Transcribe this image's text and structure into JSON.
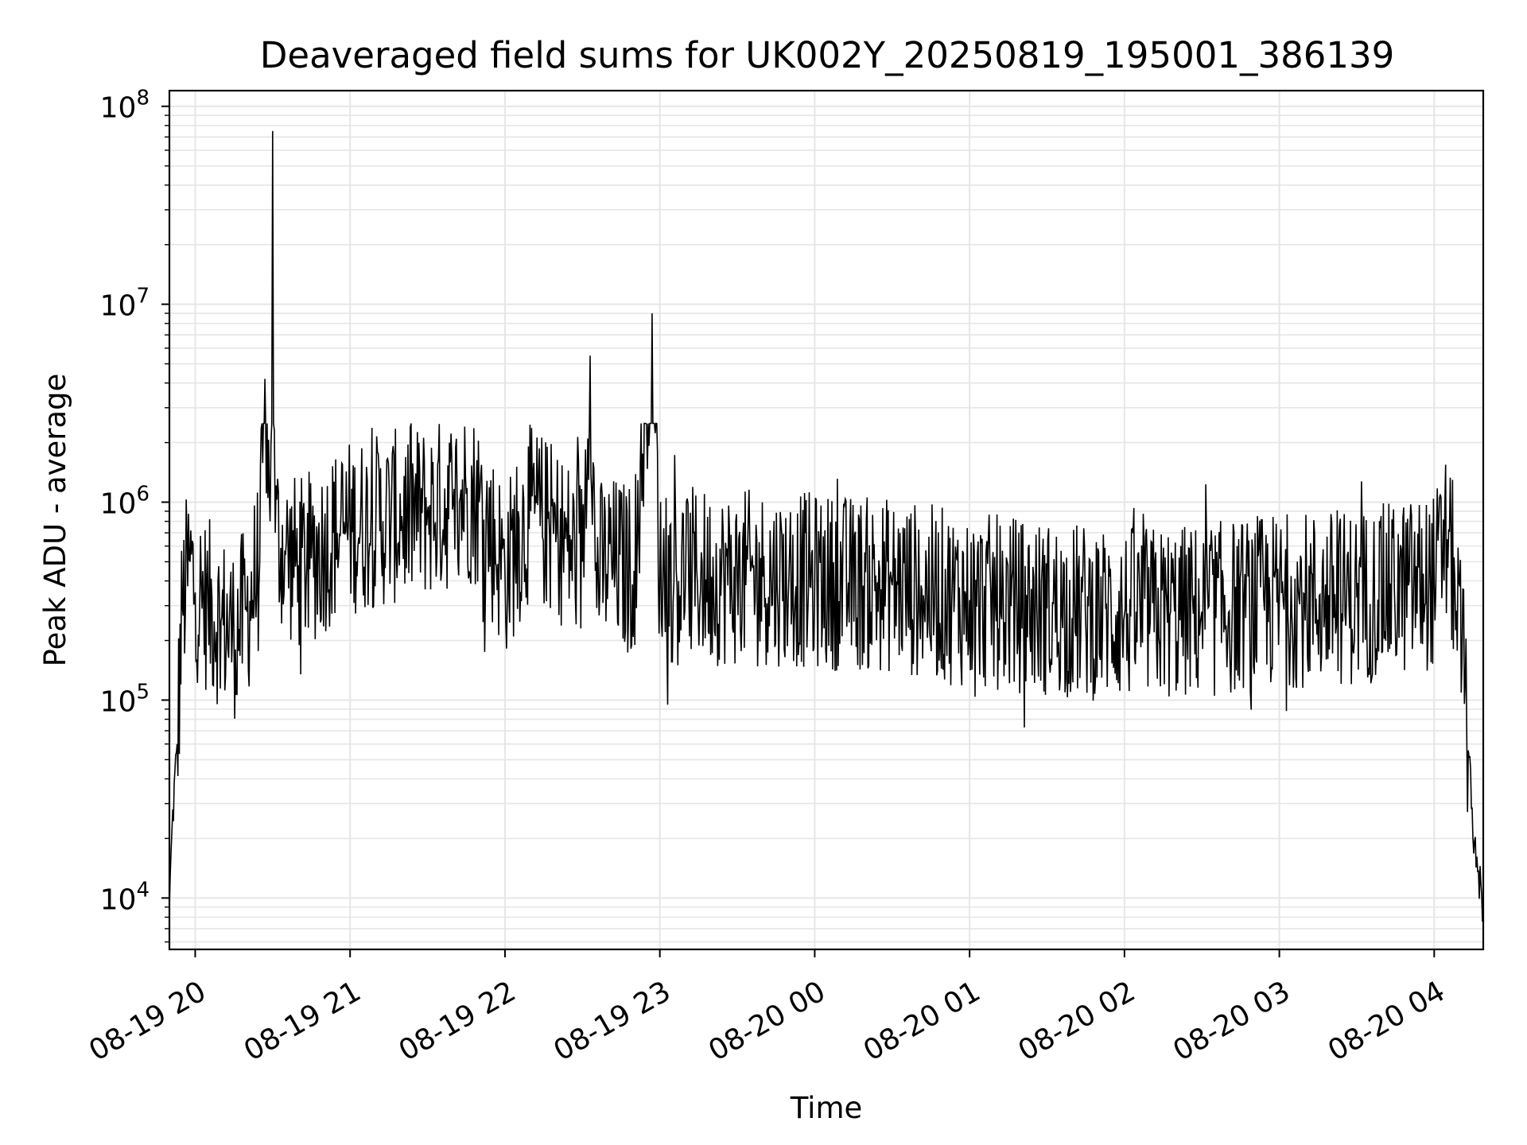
{
  "chart_data": {
    "type": "line",
    "title": "Deaveraged field sums for UK002Y_20250819_195001_386139",
    "xlabel": "Time",
    "ylabel": "Peak ADU - average",
    "yscale": "log",
    "ylim": [
      5500,
      120000000
    ],
    "xlim": [
      "08-19 19:50",
      "08-20 04:19"
    ],
    "x_ticks": [
      "08-19 20",
      "08-19 21",
      "08-19 22",
      "08-19 23",
      "08-20 00",
      "08-20 01",
      "08-20 02",
      "08-20 03",
      "08-20 04"
    ],
    "y_ticks": [
      {
        "base": "10",
        "exp": "4",
        "value": 10000
      },
      {
        "base": "10",
        "exp": "5",
        "value": 100000
      },
      {
        "base": "10",
        "exp": "6",
        "value": 1000000
      },
      {
        "base": "10",
        "exp": "7",
        "value": 10000000
      },
      {
        "base": "10",
        "exp": "8",
        "value": 100000000
      }
    ],
    "grid": true,
    "line_color": "#000000",
    "grid_color": "#e6e6e6",
    "noise_level_description": "dense fluctuating series",
    "series": [
      {
        "x": [
          "08-19 19:50",
          "08-19 19:51",
          "08-19 19:53",
          "08-19 19:55",
          "08-19 19:58",
          "08-19 20:00",
          "08-19 20:05",
          "08-19 20:10",
          "08-19 20:15",
          "08-19 20:20",
          "08-19 20:25",
          "08-19 20:27",
          "08-19 20:29",
          "08-19 20:30",
          "08-19 20:31",
          "08-19 20:35",
          "08-19 20:40",
          "08-19 20:45",
          "08-19 20:50",
          "08-19 20:55",
          "08-19 21:00",
          "08-19 21:10",
          "08-19 21:20",
          "08-19 21:30",
          "08-19 21:40",
          "08-19 21:45",
          "08-19 21:50",
          "08-19 22:00",
          "08-19 22:10",
          "08-19 22:20",
          "08-19 22:30",
          "08-19 22:33",
          "08-19 22:35",
          "08-19 22:40",
          "08-19 22:50",
          "08-19 22:57",
          "08-19 23:00",
          "08-19 23:10",
          "08-19 23:20",
          "08-19 23:30",
          "08-19 23:40",
          "08-19 23:50",
          "08-20 00:00",
          "08-20 00:30",
          "08-20 01:00",
          "08-20 01:30",
          "08-20 02:00",
          "08-20 02:30",
          "08-20 03:00",
          "08-20 03:30",
          "08-20 04:00",
          "08-20 04:05",
          "08-20 04:08",
          "08-20 04:12",
          "08-20 04:15",
          "08-20 04:19"
        ],
        "y": [
          9000,
          22000,
          60000,
          300000,
          500000,
          350000,
          300000,
          250000,
          220000,
          280000,
          500000,
          4200000,
          800000,
          75000000,
          700000,
          550000,
          480000,
          520000,
          600000,
          700000,
          750000,
          800000,
          850000,
          900000,
          1000000,
          1100000,
          1000000,
          450000,
          900000,
          700000,
          500000,
          5500000,
          450000,
          500000,
          450000,
          9000000,
          420000,
          430000,
          420000,
          410000,
          420000,
          410000,
          400000,
          380000,
          320000,
          290000,
          270000,
          280000,
          320000,
          330000,
          400000,
          650000,
          400000,
          120000,
          20000,
          9000
        ]
      }
    ]
  }
}
